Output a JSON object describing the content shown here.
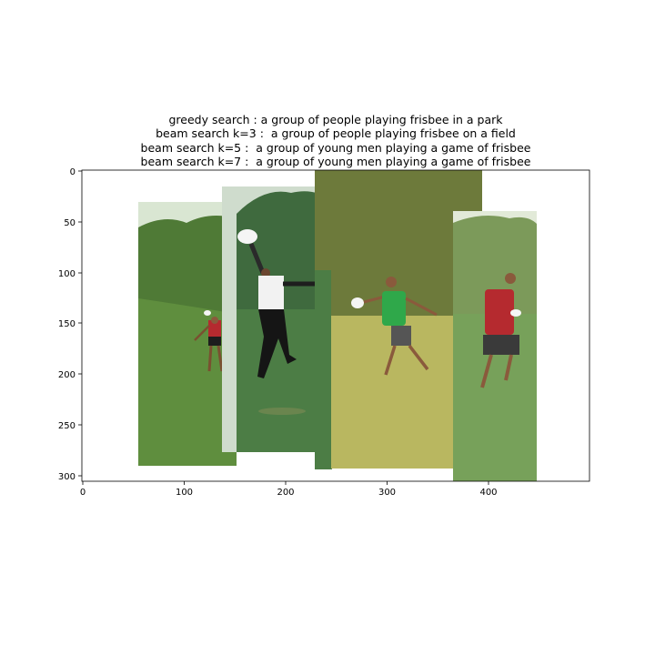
{
  "title_lines": [
    "greedy search : a group of people playing frisbee in a park",
    "beam search k=3 :  a group of people playing frisbee on a field",
    "beam search k=5 :  a group of young men playing a game of frisbee",
    "beam search k=7 :  a group of young men playing a game of frisbee"
  ],
  "axes": {
    "x_ticks": [
      "0",
      "100",
      "200",
      "300",
      "400"
    ],
    "y_ticks": [
      "0",
      "50",
      "100",
      "150",
      "200",
      "250",
      "300"
    ],
    "xlim": [
      0,
      500
    ],
    "ylim": [
      306,
      0
    ]
  },
  "image": {
    "panels": [
      {
        "name": "panel-1",
        "sky": "#d9e6d2",
        "trees": "#4f7a36",
        "grass": "#5f8e3e"
      },
      {
        "name": "panel-2",
        "sky": "#cfdccd",
        "trees": "#3f6a3e",
        "grass": "#4c7d45"
      },
      {
        "name": "panel-3",
        "sky": "#c7ceb0",
        "trees": "#6d7a3b",
        "grass": "#b9b760"
      },
      {
        "name": "panel-4",
        "sky": "#e2ead8",
        "trees": "#7c9a5a",
        "grass": "#77a15a"
      }
    ]
  }
}
